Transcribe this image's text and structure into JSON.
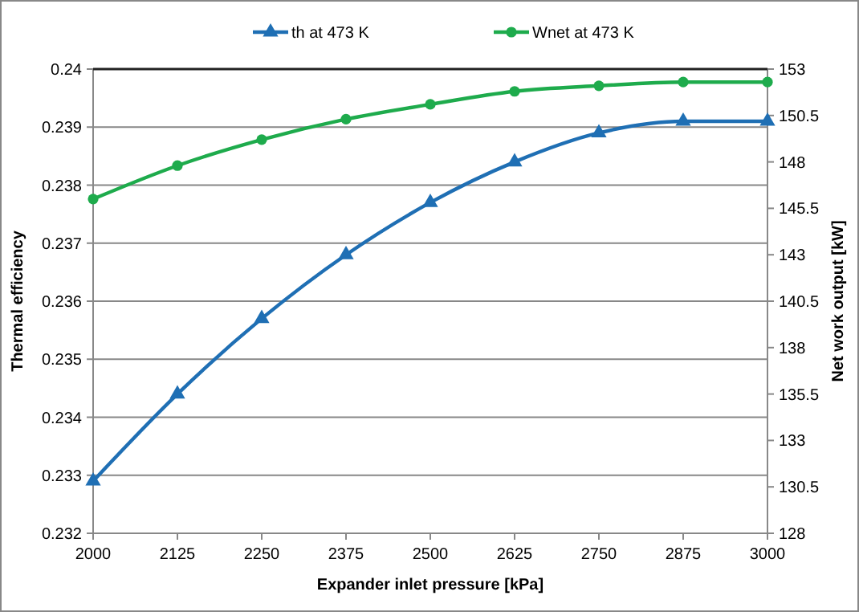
{
  "chart_data": {
    "type": "line",
    "xlabel": "Expander inlet pressure [kPa]",
    "ylabel": "Thermal efficiency",
    "y2label": "Net work output [kW]",
    "x": [
      2000,
      2125,
      2250,
      2375,
      2500,
      2625,
      2750,
      2875,
      3000
    ],
    "series": [
      {
        "name": "th at 473 K",
        "color": "#1f6fb4",
        "marker": "triangle",
        "values": [
          0.2329,
          0.2344,
          0.2357,
          0.2368,
          0.2377,
          0.2384,
          0.2389,
          0.2391,
          0.2391
        ]
      },
      {
        "name": "Wnet at 473 K",
        "color": "#1eab4c",
        "marker": "circle",
        "axis": "y2",
        "values": [
          146.0,
          147.8,
          149.2,
          150.3,
          151.1,
          151.8,
          152.1,
          152.3,
          152.3
        ]
      }
    ],
    "xlim": [
      2000,
      3000
    ],
    "xticks": [
      2000,
      2125,
      2250,
      2375,
      2500,
      2625,
      2750,
      2875,
      3000
    ],
    "ylim": [
      0.232,
      0.24
    ],
    "yticks": [
      0.232,
      0.233,
      0.234,
      0.235,
      0.236,
      0.237,
      0.238,
      0.239,
      0.24
    ],
    "y2lim": [
      128,
      153
    ],
    "y2ticks": [
      128,
      130.5,
      133,
      135.5,
      138,
      140.5,
      143,
      145.5,
      148,
      150.5,
      153
    ],
    "grid": "y",
    "legend": "top",
    "line_style": "solid"
  }
}
